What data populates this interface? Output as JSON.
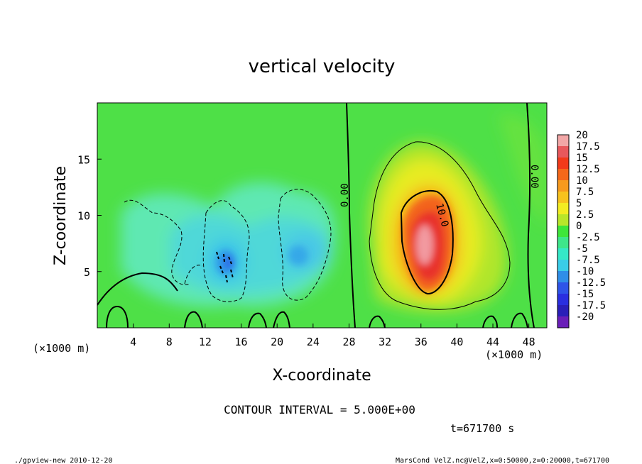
{
  "chart_data": {
    "type": "heatmap",
    "title": "vertical velocity",
    "xlabel": "X-coordinate",
    "ylabel": "Z-coordinate",
    "x_unit_left": "(×1000 m)",
    "x_unit_right": "(×1000 m)",
    "xlim": [
      0,
      50
    ],
    "ylim": [
      0,
      20
    ],
    "x_ticks": [
      4,
      8,
      12,
      16,
      20,
      24,
      28,
      32,
      36,
      40,
      44,
      48
    ],
    "y_ticks": [
      5,
      10,
      15
    ],
    "colorbar_labels": [
      "20",
      "17.5",
      "15",
      "12.5",
      "10",
      "7.5",
      "5",
      "2.5",
      "0",
      "-2.5",
      "-5",
      "-7.5",
      "-10",
      "-12.5",
      "-15",
      "-17.5",
      "-20"
    ],
    "colorbar_colors": [
      "#f2a7a7",
      "#e8585c",
      "#f23a1a",
      "#f5681a",
      "#f79a1e",
      "#f7c21e",
      "#f2ec22",
      "#b8e62a",
      "#3ee63a",
      "#3ee68a",
      "#35e8c7",
      "#3acde8",
      "#2f8ee8",
      "#2e54e8",
      "#2a2fe0",
      "#2a1fb8",
      "#6a1fb8"
    ],
    "contour_interval_text": "CONTOUR INTERVAL = 5.000E+00",
    "contour_labels": [
      "0.00",
      "10.0",
      "0.00"
    ],
    "time_text": "t=671700 s",
    "footer_left": "./gpview-new  2010-12-20",
    "footer_right": "MarsCond_VelZ.nc@VelZ,x=0:50000,z=0:20000,t=671700",
    "features": [
      {
        "name": "updraft",
        "x": 36.5,
        "z": 7.5,
        "peak": 18
      },
      {
        "name": "downdraft",
        "x": 14.5,
        "z": 6.2,
        "min": -10
      },
      {
        "name": "downdraft",
        "x": 23,
        "z": 6.5,
        "min": -7
      }
    ]
  }
}
